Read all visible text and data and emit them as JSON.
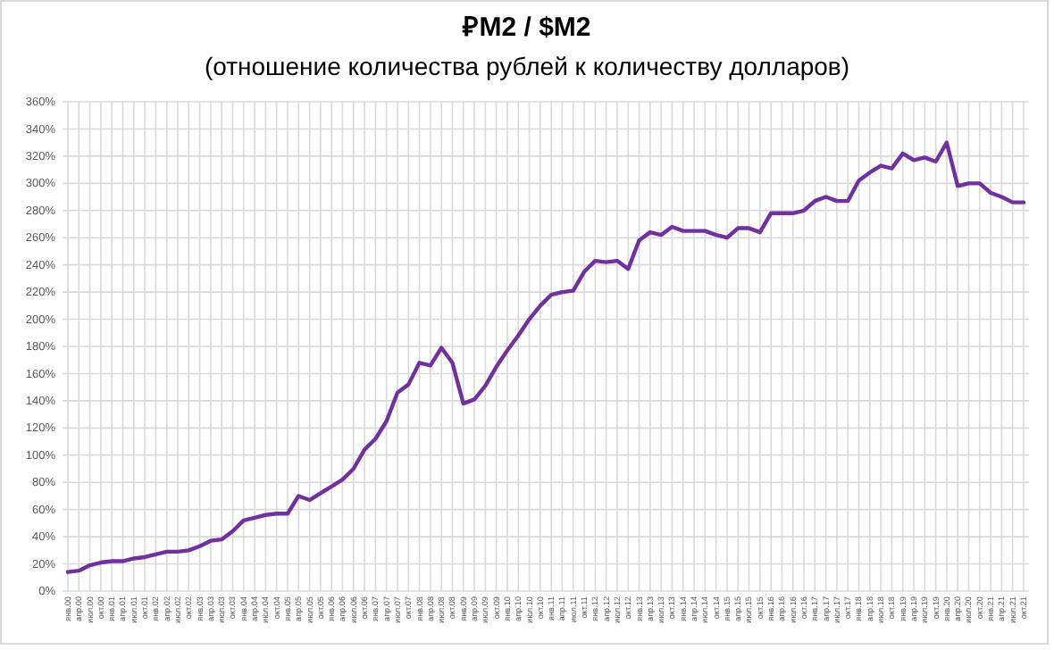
{
  "chart_data": {
    "type": "line",
    "title": "₽M2 / $M2",
    "subtitle": "(отношение количества рублей к количеству долларов)",
    "categories": [
      "янв.00",
      "апр.00",
      "июл.00",
      "окт.00",
      "янв.01",
      "апр.01",
      "июл.01",
      "окт.01",
      "янв.02",
      "апр.02",
      "июл.02",
      "окт.02",
      "янв.03",
      "апр.03",
      "июл.03",
      "окт.03",
      "янв.04",
      "апр.04",
      "июл.04",
      "окт.04",
      "янв.05",
      "апр.05",
      "июл.05",
      "окт.05",
      "янв.06",
      "апр.06",
      "июл.06",
      "окт.06",
      "янв.07",
      "апр.07",
      "июл.07",
      "окт.07",
      "янв.08",
      "апр.08",
      "июл.08",
      "окт.08",
      "янв.09",
      "апр.09",
      "июл.09",
      "окт.09",
      "янв.10",
      "апр.10",
      "июл.10",
      "окт.10",
      "янв.11",
      "апр.11",
      "июл.11",
      "окт.11",
      "янв.12",
      "апр.12",
      "июл.12",
      "окт.12",
      "янв.13",
      "апр.13",
      "июл.13",
      "окт.13",
      "янв.14",
      "апр.14",
      "июл.14",
      "окт.14",
      "янв.15",
      "апр.15",
      "июл.15",
      "окт.15",
      "янв.16",
      "апр.16",
      "июл.16",
      "окт.16",
      "янв.17",
      "апр.17",
      "июл.17",
      "окт.17",
      "янв.18",
      "апр.18",
      "июл.18",
      "окт.18",
      "янв.19",
      "апр.19",
      "июл.19",
      "окт.19",
      "янв.20",
      "апр.20",
      "июл.20",
      "окт.20",
      "янв.21",
      "апр.21",
      "июл.21",
      "окт.21"
    ],
    "series": [
      {
        "color": "#7030a0",
        "values": [
          14,
          15,
          19,
          21,
          22,
          22,
          24,
          25,
          27,
          29,
          29,
          30,
          33,
          37,
          38,
          44,
          52,
          54,
          56,
          57,
          57,
          70,
          67,
          72,
          77,
          82,
          90,
          104,
          112,
          125,
          146,
          152,
          168,
          166,
          179,
          168,
          138,
          141,
          151,
          165,
          177,
          188,
          200,
          210,
          218,
          220,
          221,
          235,
          243,
          242,
          243,
          237,
          258,
          264,
          262,
          268,
          265,
          265,
          265,
          262,
          260,
          267,
          267,
          264,
          278,
          278,
          278,
          280,
          287,
          290,
          287,
          287,
          302,
          308,
          313,
          311,
          322,
          317,
          319,
          316,
          330,
          298,
          300,
          300,
          293,
          290,
          286,
          286
        ]
      }
    ],
    "ylim": [
      0,
      360
    ],
    "yticks": [
      {
        "value": 0,
        "label": "0%"
      },
      {
        "value": 20,
        "label": "20%"
      },
      {
        "value": 40,
        "label": "40%"
      },
      {
        "value": 60,
        "label": "60%"
      },
      {
        "value": 80,
        "label": "80%"
      },
      {
        "value": 100,
        "label": "100%"
      },
      {
        "value": 120,
        "label": "120%"
      },
      {
        "value": 140,
        "label": "140%"
      },
      {
        "value": 160,
        "label": "160%"
      },
      {
        "value": 180,
        "label": "180%"
      },
      {
        "value": 200,
        "label": "200%"
      },
      {
        "value": 220,
        "label": "220%"
      },
      {
        "value": 240,
        "label": "240%"
      },
      {
        "value": 260,
        "label": "260%"
      },
      {
        "value": 280,
        "label": "280%"
      },
      {
        "value": 300,
        "label": "300%"
      },
      {
        "value": 320,
        "label": "320%"
      },
      {
        "value": 340,
        "label": "340%"
      },
      {
        "value": 360,
        "label": "360%"
      }
    ],
    "grid": true,
    "marker": "none",
    "line_style": "solid"
  }
}
